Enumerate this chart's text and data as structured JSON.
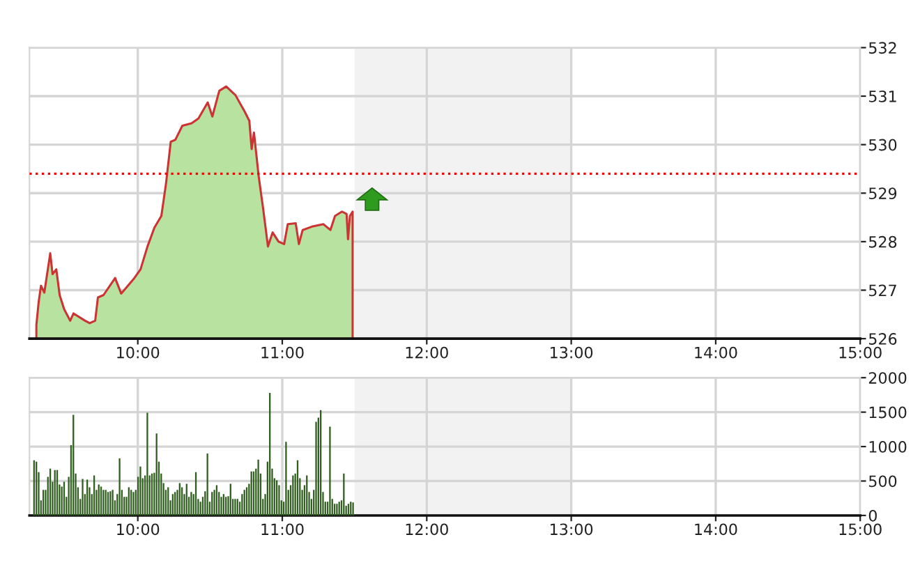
{
  "chart_data": [
    {
      "type": "area",
      "x": [
        9.298,
        9.314,
        9.33,
        9.353,
        9.394,
        9.41,
        9.436,
        9.459,
        9.49,
        9.532,
        9.555,
        9.635,
        9.667,
        9.705,
        9.724,
        9.763,
        9.843,
        9.885,
        9.971,
        10.019,
        10.067,
        10.115,
        10.163,
        10.195,
        10.228,
        10.26,
        10.308,
        10.372,
        10.42,
        10.484,
        10.516,
        10.564,
        10.612,
        10.676,
        10.74,
        10.772,
        10.788,
        10.804,
        10.837,
        10.868,
        10.901,
        10.933,
        10.974,
        11.013,
        11.038,
        11.093,
        11.115,
        11.141,
        11.205,
        11.285,
        11.333,
        11.365,
        11.413,
        11.445,
        11.455,
        11.468,
        11.487
      ],
      "series": [
        {
          "color": "#b8e2a0",
          "values": [
            526.28,
            526.76,
            527.09,
            526.95,
            527.76,
            527.33,
            527.43,
            526.9,
            526.61,
            526.37,
            526.52,
            526.37,
            526.32,
            526.37,
            526.85,
            526.9,
            527.25,
            526.93,
            527.23,
            527.43,
            527.9,
            528.29,
            528.53,
            529.19,
            530.06,
            530.1,
            530.39,
            530.44,
            530.54,
            530.87,
            530.58,
            531.11,
            531.2,
            531.02,
            530.68,
            530.49,
            529.91,
            530.25,
            529.34,
            528.67,
            527.9,
            528.19,
            528.0,
            527.95,
            528.36,
            528.38,
            527.95,
            528.24,
            528.31,
            528.36,
            528.24,
            528.53,
            528.62,
            528.57,
            528.05,
            528.53,
            528.62
          ]
        }
      ],
      "xlim": [
        9.25,
        15
      ],
      "ylim": [
        526,
        532
      ],
      "xticks": [
        {
          "value": 10,
          "label": "10:00"
        },
        {
          "value": 11,
          "label": "11:00"
        },
        {
          "value": 12,
          "label": "12:00"
        },
        {
          "value": 13,
          "label": "13:00"
        },
        {
          "value": 14,
          "label": "14:00"
        },
        {
          "value": 15,
          "label": "15:00"
        }
      ],
      "yticks": [
        526,
        527,
        528,
        529,
        530,
        531,
        532
      ],
      "ref_lines": [
        {
          "axis": "y",
          "value": 529.4,
          "color": "#ff0000",
          "line_style": "dotted"
        }
      ],
      "bands": [
        {
          "axis": "x",
          "from": 11.5,
          "to": 13,
          "color": "#f2f2f2"
        }
      ],
      "grid": true
    },
    {
      "type": "bar",
      "x": [
        9.282,
        9.298,
        9.314,
        9.33,
        9.346,
        9.362,
        9.378,
        9.394,
        9.41,
        9.426,
        9.442,
        9.458,
        9.474,
        9.49,
        9.506,
        9.522,
        9.538,
        9.554,
        9.57,
        9.586,
        9.602,
        9.618,
        9.634,
        9.65,
        9.666,
        9.682,
        9.698,
        9.714,
        9.73,
        9.746,
        9.762,
        9.778,
        9.794,
        9.81,
        9.826,
        9.842,
        9.858,
        9.874,
        9.89,
        9.906,
        9.922,
        9.938,
        9.954,
        9.97,
        9.986,
        10.002,
        10.018,
        10.034,
        10.05,
        10.066,
        10.082,
        10.098,
        10.114,
        10.13,
        10.146,
        10.162,
        10.178,
        10.194,
        10.21,
        10.226,
        10.242,
        10.258,
        10.274,
        10.29,
        10.306,
        10.322,
        10.338,
        10.354,
        10.37,
        10.386,
        10.402,
        10.418,
        10.434,
        10.45,
        10.466,
        10.482,
        10.498,
        10.514,
        10.53,
        10.546,
        10.562,
        10.578,
        10.594,
        10.61,
        10.626,
        10.642,
        10.658,
        10.674,
        10.69,
        10.706,
        10.722,
        10.738,
        10.754,
        10.77,
        10.786,
        10.802,
        10.818,
        10.834,
        10.85,
        10.866,
        10.882,
        10.898,
        10.914,
        10.93,
        10.946,
        10.962,
        10.978,
        10.994,
        11.01,
        11.026,
        11.042,
        11.058,
        11.074,
        11.09,
        11.106,
        11.122,
        11.138,
        11.154,
        11.17,
        11.186,
        11.202,
        11.218,
        11.234,
        11.25,
        11.266,
        11.282,
        11.298,
        11.314,
        11.33,
        11.346,
        11.362,
        11.378,
        11.394,
        11.41,
        11.426,
        11.442,
        11.458,
        11.474,
        11.49
      ],
      "series": [
        {
          "color": "#2f5e1e",
          "values": [
            800,
            780,
            630,
            220,
            370,
            370,
            560,
            680,
            490,
            660,
            660,
            450,
            420,
            490,
            270,
            560,
            1020,
            1460,
            610,
            410,
            240,
            530,
            310,
            520,
            410,
            310,
            580,
            370,
            450,
            420,
            370,
            370,
            340,
            350,
            370,
            220,
            310,
            830,
            370,
            270,
            270,
            410,
            370,
            340,
            370,
            560,
            710,
            540,
            580,
            1490,
            580,
            610,
            620,
            1190,
            780,
            610,
            470,
            370,
            410,
            220,
            310,
            340,
            370,
            470,
            410,
            310,
            460,
            270,
            340,
            310,
            630,
            240,
            200,
            270,
            350,
            900,
            200,
            340,
            370,
            440,
            340,
            270,
            310,
            270,
            280,
            460,
            240,
            240,
            240,
            200,
            310,
            370,
            410,
            460,
            640,
            640,
            680,
            810,
            610,
            240,
            310,
            780,
            1780,
            680,
            540,
            510,
            440,
            220,
            200,
            1070,
            370,
            440,
            580,
            610,
            800,
            540,
            370,
            440,
            580,
            340,
            240,
            370,
            1360,
            1420,
            1530,
            340,
            200,
            200,
            1290,
            240,
            170,
            170,
            200,
            220,
            610,
            140,
            170,
            200,
            190
          ]
        }
      ],
      "xlim": [
        9.25,
        15
      ],
      "ylim": [
        0,
        2000
      ],
      "xticks": [
        {
          "value": 10,
          "label": "10:00"
        },
        {
          "value": 11,
          "label": "11:00"
        },
        {
          "value": 12,
          "label": "12:00"
        },
        {
          "value": 13,
          "label": "13:00"
        },
        {
          "value": 14,
          "label": "14:00"
        },
        {
          "value": 15,
          "label": "15:00"
        }
      ],
      "yticks": [
        0,
        500,
        1000,
        1500,
        2000
      ],
      "bands": [
        {
          "axis": "x",
          "from": 11.5,
          "to": 13,
          "color": "#f2f2f2"
        }
      ],
      "grid": true
    }
  ]
}
